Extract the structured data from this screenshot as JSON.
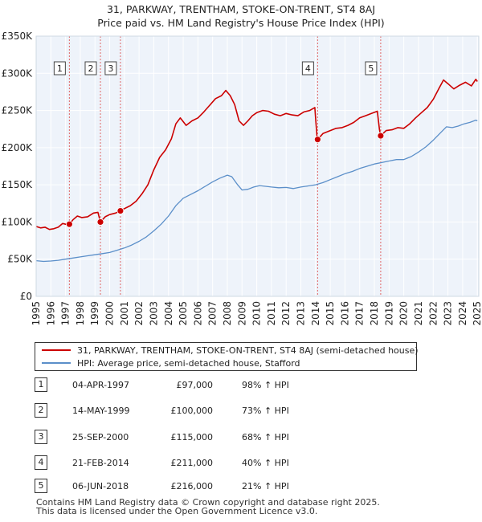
{
  "title": {
    "line1": "31, PARKWAY, TRENTHAM, STOKE-ON-TRENT, ST4 8AJ",
    "line2": "Price paid vs. HM Land Registry's House Price Index (HPI)"
  },
  "chart_data": {
    "type": "line",
    "title": "31, PARKWAY, TRENTHAM, STOKE-ON-TRENT, ST4 8AJ — Price paid vs. HM Land Registry's House Price Index (HPI)",
    "xlim": [
      1995,
      2025.1
    ],
    "ylim": [
      0,
      350000
    ],
    "y_ticks": [
      0,
      50000,
      100000,
      150000,
      200000,
      250000,
      300000,
      350000
    ],
    "y_tick_labels": [
      "£0",
      "£50K",
      "£100K",
      "£150K",
      "£200K",
      "£250K",
      "£300K",
      "£350K"
    ],
    "x_ticks": [
      1995,
      1996,
      1997,
      1998,
      1999,
      2000,
      2001,
      2002,
      2003,
      2004,
      2005,
      2006,
      2007,
      2008,
      2009,
      2010,
      2011,
      2012,
      2013,
      2014,
      2015,
      2016,
      2017,
      2018,
      2019,
      2020,
      2021,
      2022,
      2023,
      2024,
      2025
    ],
    "grid": true,
    "legend_position": "below",
    "series": [
      {
        "name": "31, PARKWAY, TRENTHAM, STOKE-ON-TRENT, ST4 8AJ (semi-detached house)",
        "color": "#cc0000",
        "points": [
          [
            1995.0,
            94000
          ],
          [
            1995.3,
            92000
          ],
          [
            1995.6,
            93000
          ],
          [
            1995.9,
            90000
          ],
          [
            1996.2,
            91000
          ],
          [
            1996.5,
            93000
          ],
          [
            1996.8,
            98000
          ],
          [
            1997.0,
            97000
          ],
          [
            1997.26,
            97000
          ],
          [
            1997.5,
            103000
          ],
          [
            1997.8,
            108000
          ],
          [
            1998.1,
            106000
          ],
          [
            1998.5,
            107000
          ],
          [
            1998.9,
            112000
          ],
          [
            1999.2,
            113000
          ],
          [
            1999.37,
            100000
          ],
          [
            1999.7,
            107000
          ],
          [
            2000.0,
            110000
          ],
          [
            2000.4,
            112000
          ],
          [
            2000.73,
            115000
          ],
          [
            2001.0,
            118000
          ],
          [
            2001.4,
            122000
          ],
          [
            2001.8,
            128000
          ],
          [
            2002.2,
            138000
          ],
          [
            2002.6,
            150000
          ],
          [
            2003.0,
            170000
          ],
          [
            2003.4,
            187000
          ],
          [
            2003.8,
            197000
          ],
          [
            2004.2,
            212000
          ],
          [
            2004.5,
            232000
          ],
          [
            2004.8,
            240000
          ],
          [
            2005.2,
            230000
          ],
          [
            2005.6,
            236000
          ],
          [
            2006.0,
            240000
          ],
          [
            2006.4,
            248000
          ],
          [
            2006.8,
            257000
          ],
          [
            2007.2,
            266000
          ],
          [
            2007.6,
            270000
          ],
          [
            2007.9,
            277000
          ],
          [
            2008.2,
            270000
          ],
          [
            2008.5,
            258000
          ],
          [
            2008.8,
            236000
          ],
          [
            2009.1,
            230000
          ],
          [
            2009.4,
            236000
          ],
          [
            2009.7,
            243000
          ],
          [
            2010.0,
            247000
          ],
          [
            2010.4,
            250000
          ],
          [
            2010.8,
            249000
          ],
          [
            2011.2,
            245000
          ],
          [
            2011.6,
            243000
          ],
          [
            2012.0,
            246000
          ],
          [
            2012.4,
            244000
          ],
          [
            2012.8,
            243000
          ],
          [
            2013.2,
            248000
          ],
          [
            2013.6,
            250000
          ],
          [
            2013.95,
            254000
          ],
          [
            2014.1,
            214000
          ],
          [
            2014.14,
            211000
          ],
          [
            2014.5,
            219000
          ],
          [
            2015.0,
            223000
          ],
          [
            2015.4,
            226000
          ],
          [
            2015.8,
            227000
          ],
          [
            2016.2,
            230000
          ],
          [
            2016.6,
            234000
          ],
          [
            2017.0,
            240000
          ],
          [
            2017.4,
            243000
          ],
          [
            2017.8,
            246000
          ],
          [
            2018.2,
            249000
          ],
          [
            2018.35,
            224000
          ],
          [
            2018.43,
            216000
          ],
          [
            2018.8,
            223000
          ],
          [
            2019.2,
            224000
          ],
          [
            2019.6,
            227000
          ],
          [
            2020.0,
            226000
          ],
          [
            2020.4,
            232000
          ],
          [
            2020.8,
            240000
          ],
          [
            2021.2,
            247000
          ],
          [
            2021.6,
            254000
          ],
          [
            2022.0,
            265000
          ],
          [
            2022.4,
            280000
          ],
          [
            2022.7,
            291000
          ],
          [
            2023.0,
            286000
          ],
          [
            2023.4,
            279000
          ],
          [
            2023.8,
            284000
          ],
          [
            2024.2,
            288000
          ],
          [
            2024.6,
            283000
          ],
          [
            2024.9,
            292000
          ],
          [
            2025.0,
            289000
          ]
        ]
      },
      {
        "name": "HPI: Average price, semi-detached house, Stafford",
        "color": "#5b8fc9",
        "points": [
          [
            1995.0,
            48000
          ],
          [
            1995.5,
            47000
          ],
          [
            1996.0,
            47500
          ],
          [
            1996.5,
            48500
          ],
          [
            1997.0,
            50000
          ],
          [
            1997.5,
            51500
          ],
          [
            1998.0,
            53000
          ],
          [
            1998.5,
            54500
          ],
          [
            1999.0,
            56000
          ],
          [
            1999.5,
            57500
          ],
          [
            2000.0,
            59000
          ],
          [
            2000.5,
            62000
          ],
          [
            2001.0,
            65000
          ],
          [
            2001.5,
            69000
          ],
          [
            2002.0,
            74000
          ],
          [
            2002.5,
            80000
          ],
          [
            2003.0,
            88000
          ],
          [
            2003.5,
            97000
          ],
          [
            2004.0,
            108000
          ],
          [
            2004.5,
            122000
          ],
          [
            2005.0,
            132000
          ],
          [
            2005.5,
            137000
          ],
          [
            2006.0,
            142000
          ],
          [
            2006.5,
            148000
          ],
          [
            2007.0,
            154000
          ],
          [
            2007.5,
            159000
          ],
          [
            2008.0,
            163000
          ],
          [
            2008.3,
            161000
          ],
          [
            2008.7,
            150000
          ],
          [
            2009.0,
            143000
          ],
          [
            2009.4,
            144000
          ],
          [
            2009.8,
            147000
          ],
          [
            2010.2,
            149000
          ],
          [
            2010.6,
            148000
          ],
          [
            2011.0,
            147000
          ],
          [
            2011.5,
            146000
          ],
          [
            2012.0,
            146500
          ],
          [
            2012.5,
            145000
          ],
          [
            2013.0,
            147000
          ],
          [
            2013.5,
            148500
          ],
          [
            2014.0,
            150000
          ],
          [
            2014.5,
            153000
          ],
          [
            2015.0,
            157000
          ],
          [
            2015.5,
            161000
          ],
          [
            2016.0,
            165000
          ],
          [
            2016.5,
            168000
          ],
          [
            2017.0,
            172000
          ],
          [
            2017.5,
            175000
          ],
          [
            2018.0,
            178000
          ],
          [
            2018.5,
            180000
          ],
          [
            2019.0,
            182000
          ],
          [
            2019.5,
            184000
          ],
          [
            2020.0,
            184000
          ],
          [
            2020.5,
            188000
          ],
          [
            2021.0,
            194000
          ],
          [
            2021.5,
            201000
          ],
          [
            2022.0,
            210000
          ],
          [
            2022.5,
            220000
          ],
          [
            2022.9,
            228000
          ],
          [
            2023.3,
            227000
          ],
          [
            2023.7,
            229000
          ],
          [
            2024.1,
            232000
          ],
          [
            2024.5,
            234000
          ],
          [
            2024.9,
            237000
          ],
          [
            2025.0,
            236000
          ]
        ]
      }
    ],
    "sales": [
      {
        "num": "1",
        "x": 1997.26,
        "y": 97000,
        "date": "04-APR-1997",
        "price": "£97,000",
        "hpi": "98% ↑ HPI"
      },
      {
        "num": "2",
        "x": 1999.37,
        "y": 100000,
        "date": "14-MAY-1999",
        "price": "£100,000",
        "hpi": "73% ↑ HPI"
      },
      {
        "num": "3",
        "x": 2000.73,
        "y": 115000,
        "date": "25-SEP-2000",
        "price": "£115,000",
        "hpi": "68% ↑ HPI"
      },
      {
        "num": "4",
        "x": 2014.14,
        "y": 211000,
        "date": "21-FEB-2014",
        "price": "£211,000",
        "hpi": "40% ↑ HPI"
      },
      {
        "num": "5",
        "x": 2018.43,
        "y": 216000,
        "date": "06-JUN-2018",
        "price": "£216,000",
        "hpi": "21% ↑ HPI"
      }
    ]
  },
  "legend": {
    "property_label": "31, PARKWAY, TRENTHAM, STOKE-ON-TRENT, ST4 8AJ (semi-detached house)",
    "hpi_label": "HPI: Average price, semi-detached house, Stafford",
    "property_color": "#cc0000",
    "hpi_color": "#5b8fc9"
  },
  "footer": {
    "line1": "Contains HM Land Registry data © Crown copyright and database right 2025.",
    "line2": "This data is licensed under the Open Government Licence v3.0."
  }
}
